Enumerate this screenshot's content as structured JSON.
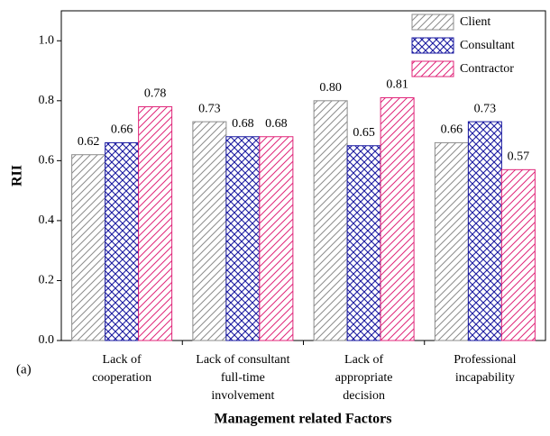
{
  "chart_data": {
    "type": "bar",
    "y_label": "RII",
    "x_label": "Management related Factors",
    "annotation": "(a)",
    "categories": [
      [
        "Lack of",
        "cooperation"
      ],
      [
        "Lack of consultant",
        "full-time",
        "involvement"
      ],
      [
        "Lack of",
        "appropriate",
        "decision"
      ],
      [
        "Professional",
        "incapability"
      ]
    ],
    "series": [
      {
        "name": "Client",
        "color": "#8c8c8c",
        "hatch": "diagonal",
        "values": [
          0.62,
          0.73,
          0.8,
          0.66
        ],
        "value_labels": [
          "0.62",
          "0.73",
          "0.80",
          "0.66"
        ]
      },
      {
        "name": "Consultant",
        "color": "#1a1aa0",
        "hatch": "cross",
        "values": [
          0.66,
          0.68,
          0.65,
          0.73
        ],
        "value_labels": [
          "0.66",
          "0.68",
          "0.65",
          "0.73"
        ]
      },
      {
        "name": "Contractor",
        "color": "#e0267a",
        "hatch": "diagonal",
        "values": [
          0.78,
          0.68,
          0.81,
          0.57
        ],
        "value_labels": [
          "0.78",
          "0.68",
          "0.81",
          "0.57"
        ]
      }
    ],
    "ylim": [
      0,
      1.1
    ],
    "yticks": [
      {
        "value": 0,
        "label": "0.0"
      },
      0.2,
      0.4,
      0.6,
      0.8,
      {
        "value": 1,
        "label": "1.0"
      }
    ],
    "legend": "upper right",
    "grid": false
  }
}
